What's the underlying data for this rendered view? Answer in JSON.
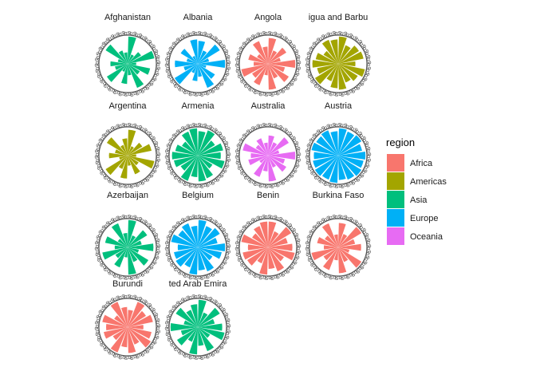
{
  "chart_data": {
    "type": "bar",
    "coord": "polar",
    "legend_title": "region",
    "legend_position": "right",
    "legend": [
      {
        "label": "Africa",
        "color": "#F8766D"
      },
      {
        "label": "Americas",
        "color": "#A3A500"
      },
      {
        "label": "Asia",
        "color": "#00BF7D"
      },
      {
        "label": "Europe",
        "color": "#00B0F6"
      },
      {
        "label": "Oceania",
        "color": "#E76BF3"
      }
    ],
    "panels": [
      {
        "country": "Afghanistan",
        "label": "Afghanistan",
        "region": "Asia",
        "values": [
          0.95,
          0.35,
          0.55,
          0.95,
          0.3,
          0.8,
          0.5,
          0.9,
          0.4,
          0.7,
          0.3,
          0.85,
          0.45,
          0.6,
          0.35,
          0.9,
          0.5,
          0.4
        ]
      },
      {
        "country": "Albania",
        "label": "Albania",
        "region": "Europe",
        "values": [
          0.8,
          0.5,
          0.9,
          0.4,
          0.95,
          0.3,
          0.7,
          0.9,
          0.45,
          0.6,
          0.35,
          0.95,
          0.5,
          0.8,
          0.4,
          0.7,
          0.3,
          0.85
        ]
      },
      {
        "country": "Angola",
        "label": "Angola",
        "region": "Africa",
        "values": [
          0.9,
          0.5,
          0.75,
          0.45,
          0.95,
          0.6,
          0.85,
          0.55,
          0.9,
          0.4,
          0.8,
          0.65,
          0.95,
          0.5,
          0.7,
          0.45,
          0.85,
          0.6
        ]
      },
      {
        "country": "Antigua and Barbuda",
        "label": "igua and Barbu",
        "region": "Americas",
        "values": [
          0.95,
          0.7,
          0.85,
          0.9,
          0.6,
          0.95,
          0.8,
          0.7,
          0.9,
          0.85,
          0.65,
          0.95,
          0.75,
          0.9,
          0.8,
          0.6,
          0.9,
          0.85
        ]
      },
      {
        "country": "Argentina",
        "label": "Argentina",
        "region": "Americas",
        "values": [
          0.9,
          0.35,
          0.6,
          0.85,
          0.3,
          0.95,
          0.45,
          0.7,
          0.35,
          0.8,
          0.5,
          0.9,
          0.3,
          0.65,
          0.45,
          0.85,
          0.4,
          0.6
        ]
      },
      {
        "country": "Armenia",
        "label": "Armenia",
        "region": "Asia",
        "values": [
          0.85,
          0.95,
          0.7,
          0.9,
          0.8,
          0.95,
          0.6,
          0.85,
          0.9,
          0.75,
          0.95,
          0.7,
          0.85,
          0.9,
          0.8,
          0.65,
          0.9,
          0.95
        ]
      },
      {
        "country": "Australia",
        "label": "Australia",
        "region": "Oceania",
        "values": [
          0.7,
          0.5,
          0.85,
          0.4,
          0.95,
          0.6,
          0.75,
          0.45,
          0.9,
          0.55,
          0.8,
          0.35,
          0.7,
          0.6,
          0.9,
          0.5,
          0.65,
          0.45
        ]
      },
      {
        "country": "Austria",
        "label": "Austria",
        "region": "Europe",
        "values": [
          0.95,
          0.9,
          0.95,
          0.85,
          0.95,
          0.9,
          0.95,
          0.9,
          0.85,
          0.95,
          0.9,
          0.95,
          0.9,
          0.85,
          0.95,
          0.9,
          0.95,
          0.85
        ]
      },
      {
        "country": "Azerbaijan",
        "label": "Azerbaijan",
        "region": "Asia",
        "values": [
          0.95,
          0.45,
          0.8,
          0.5,
          0.9,
          0.4,
          0.85,
          0.55,
          0.95,
          0.35,
          0.75,
          0.5,
          0.9,
          0.45,
          0.8,
          0.4,
          0.9,
          0.5
        ]
      },
      {
        "country": "Belgium",
        "label": "Belgium",
        "region": "Europe",
        "values": [
          0.95,
          0.8,
          0.9,
          0.7,
          0.95,
          0.85,
          0.6,
          0.9,
          0.8,
          0.95,
          0.75,
          0.9,
          0.85,
          0.7,
          0.95,
          0.8,
          0.9,
          0.75
        ]
      },
      {
        "country": "Benin",
        "label": "Benin",
        "region": "Africa",
        "values": [
          0.9,
          0.6,
          0.95,
          0.7,
          0.85,
          0.95,
          0.65,
          0.9,
          0.75,
          0.95,
          0.6,
          0.85,
          0.9,
          0.7,
          0.95,
          0.65,
          0.8,
          0.9
        ]
      },
      {
        "country": "Burkina Faso",
        "label": "Burkina Faso",
        "region": "Africa",
        "values": [
          0.85,
          0.5,
          0.95,
          0.6,
          0.8,
          0.4,
          0.95,
          0.55,
          0.9,
          0.45,
          0.85,
          0.6,
          0.95,
          0.5,
          0.75,
          0.55,
          0.9,
          0.45
        ]
      },
      {
        "country": "Burundi",
        "label": "Burundi",
        "region": "Africa",
        "values": [
          0.6,
          0.95,
          0.75,
          0.9,
          0.55,
          0.85,
          0.95,
          0.65,
          0.9,
          0.7,
          0.95,
          0.6,
          0.85,
          0.75,
          0.9,
          0.55,
          0.95,
          0.7
        ]
      },
      {
        "country": "United Arab Emirates",
        "label": "ted Arab Emira",
        "region": "Asia",
        "values": [
          0.95,
          0.55,
          0.9,
          0.6,
          0.85,
          0.95,
          0.5,
          0.9,
          0.65,
          0.95,
          0.55,
          0.85,
          0.6,
          0.95,
          0.5,
          0.9,
          0.65,
          0.8
        ]
      }
    ]
  }
}
